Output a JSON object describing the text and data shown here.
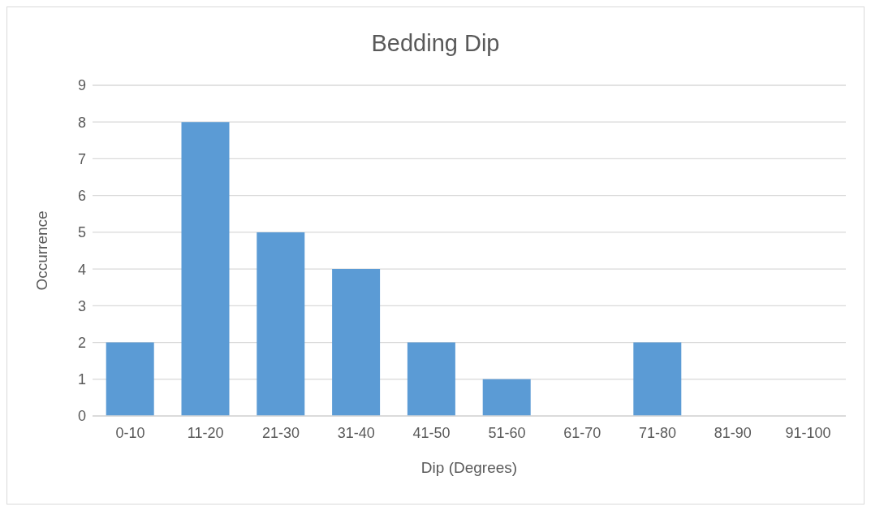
{
  "chart_data": {
    "type": "bar",
    "title": "Bedding Dip",
    "xlabel": "Dip (Degrees)",
    "ylabel": "Occurrence",
    "categories": [
      "0-10",
      "11-20",
      "21-30",
      "31-40",
      "41-50",
      "51-60",
      "61-70",
      "71-80",
      "81-90",
      "91-100"
    ],
    "values": [
      2,
      8,
      5,
      4,
      2,
      1,
      0,
      2,
      0,
      0
    ],
    "color": "#5b9bd5",
    "ylim": [
      0,
      9
    ],
    "yticks": [
      0,
      1,
      2,
      3,
      4,
      5,
      6,
      7,
      8,
      9
    ],
    "grid": "y"
  }
}
